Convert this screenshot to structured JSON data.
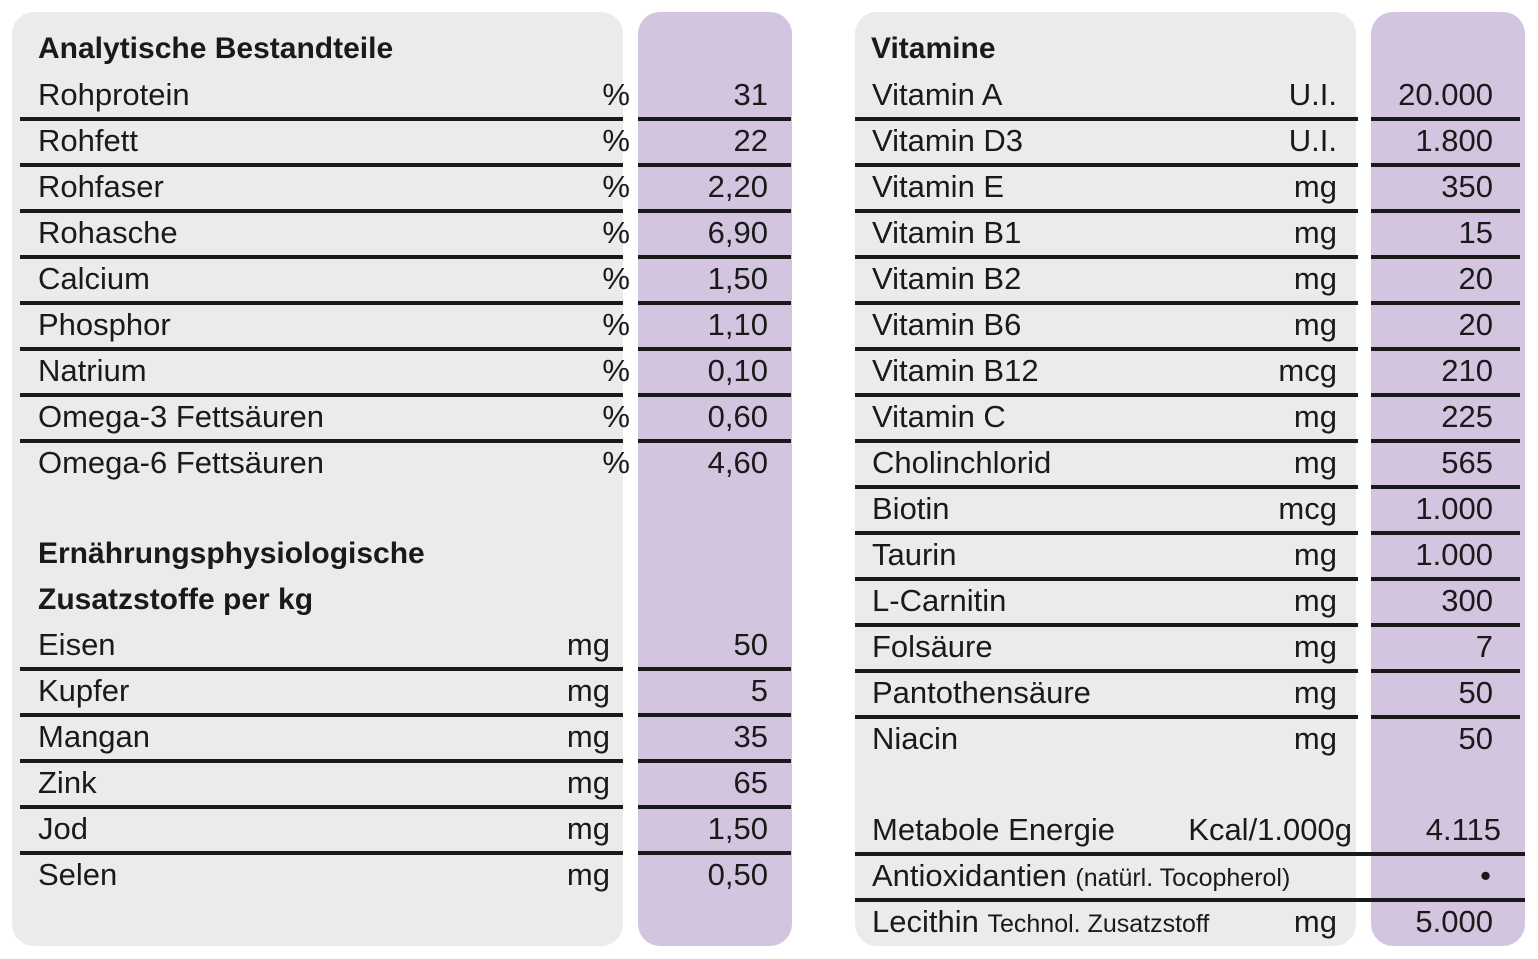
{
  "left": {
    "heading1": "Analytische Bestandteile",
    "heading2_line1": "Ernährungsphysiologische",
    "heading2_line2": "Zusatzstoffe per kg",
    "analytics": [
      {
        "name": "Rohprotein",
        "unit": "%",
        "value": "31"
      },
      {
        "name": "Rohfett",
        "unit": "%",
        "value": "22"
      },
      {
        "name": "Rohfaser",
        "unit": "%",
        "value": "2,20"
      },
      {
        "name": "Rohasche",
        "unit": "%",
        "value": "6,90"
      },
      {
        "name": "Calcium",
        "unit": "%",
        "value": "1,50"
      },
      {
        "name": "Phosphor",
        "unit": "%",
        "value": "1,10"
      },
      {
        "name": "Natrium",
        "unit": "%",
        "value": "0,10"
      },
      {
        "name": "Omega-3 Fettsäuren",
        "unit": "%",
        "value": "0,60"
      },
      {
        "name": "Omega-6 Fettsäuren",
        "unit": "%",
        "value": "4,60"
      }
    ],
    "additives": [
      {
        "name": "Eisen",
        "unit": "mg",
        "value": "50"
      },
      {
        "name": "Kupfer",
        "unit": "mg",
        "value": "5"
      },
      {
        "name": "Mangan",
        "unit": "mg",
        "value": "35"
      },
      {
        "name": "Zink",
        "unit": "mg",
        "value": "65"
      },
      {
        "name": "Jod",
        "unit": "mg",
        "value": "1,50"
      },
      {
        "name": "Selen",
        "unit": "mg",
        "value": "0,50"
      }
    ]
  },
  "right": {
    "heading": "Vitamine",
    "vitamins": [
      {
        "name": "Vitamin A",
        "unit": "U.I.",
        "value": "20.000"
      },
      {
        "name": "Vitamin D3",
        "unit": "U.I.",
        "value": "1.800"
      },
      {
        "name": "Vitamin E",
        "unit": "mg",
        "value": "350"
      },
      {
        "name": "Vitamin B1",
        "unit": "mg",
        "value": "15"
      },
      {
        "name": "Vitamin B2",
        "unit": "mg",
        "value": "20"
      },
      {
        "name": "Vitamin B6",
        "unit": "mg",
        "value": "20"
      },
      {
        "name": "Vitamin B12",
        "unit": "mcg",
        "value": "210"
      },
      {
        "name": "Vitamin C",
        "unit": "mg",
        "value": "225"
      },
      {
        "name": "Cholinchlorid",
        "unit": "mg",
        "value": "565"
      },
      {
        "name": "Biotin",
        "unit": "mcg",
        "value": "1.000"
      },
      {
        "name": "Taurin",
        "unit": "mg",
        "value": "1.000"
      },
      {
        "name": "L-Carnitin",
        "unit": "mg",
        "value": "300"
      },
      {
        "name": "Folsäure",
        "unit": "mg",
        "value": "7"
      },
      {
        "name": "Pantothensäure",
        "unit": "mg",
        "value": "50"
      },
      {
        "name": "Niacin",
        "unit": "mg",
        "value": "50"
      }
    ],
    "energy": {
      "name": "Metabole Energie",
      "unit": "Kcal/1.000g",
      "value": "4.115"
    },
    "antioxidants": {
      "name": "Antioxidantien",
      "note": "(natürl. Tocopherol)",
      "value": "•"
    },
    "lecithin": {
      "name": "Lecithin",
      "note": "Technol. Zusatzstoff",
      "unit": "mg",
      "value": "5.000"
    }
  }
}
